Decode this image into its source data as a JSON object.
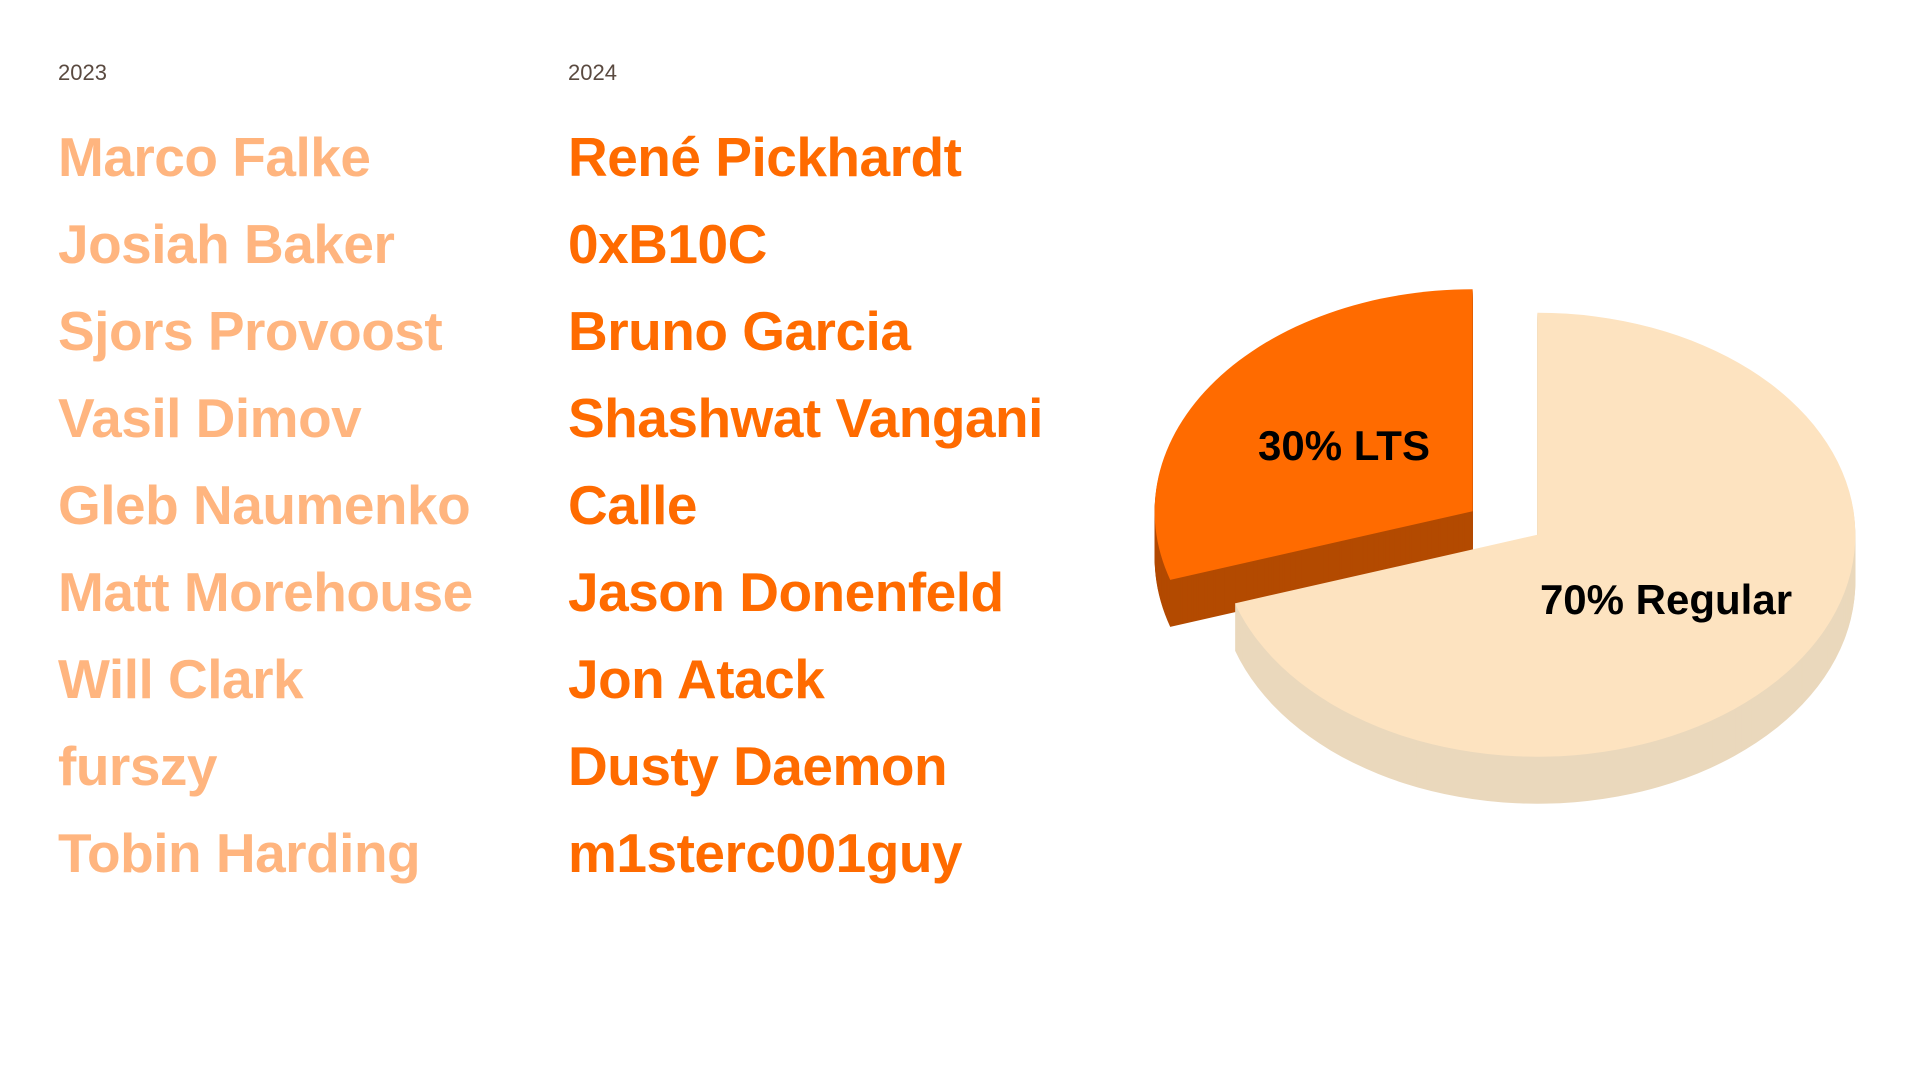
{
  "columns": [
    {
      "year": "2023",
      "names": [
        "Marco Falke",
        "Josiah Baker",
        "Sjors Provoost",
        "Vasil Dimov",
        "Gleb Naumenko",
        "Matt Morehouse",
        "Will Clark",
        "furszy",
        "Tobin Harding"
      ],
      "color": "#FFB57F"
    },
    {
      "year": "2024",
      "names": [
        "René Pickhardt",
        "0xB10C",
        "Bruno Garcia",
        "Shashwat Vangani",
        "Calle",
        "Jason Donenfeld",
        "Jon Atack",
        "Dusty Daemon",
        "m1sterc001guy"
      ],
      "color": "#FF6B00"
    }
  ],
  "chart_data": {
    "type": "pie",
    "style": "3d-exploded",
    "slices": [
      {
        "label": "30% LTS",
        "value": 30,
        "color": "#FF6B00",
        "side_color": "#B34A00"
      },
      {
        "label": "70% Regular",
        "value": 70,
        "color": "#FDE3C0",
        "side_color": "#EAD8BC"
      }
    ]
  }
}
